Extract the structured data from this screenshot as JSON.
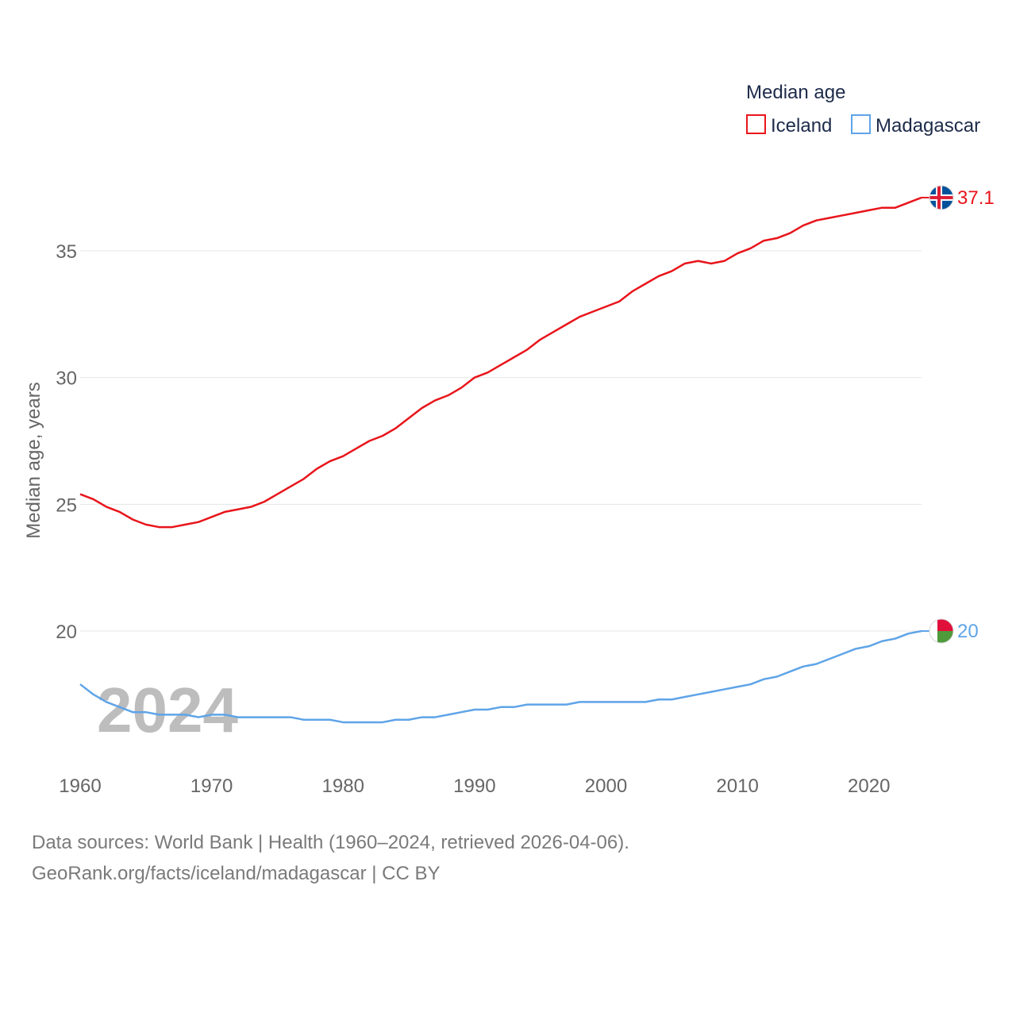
{
  "chart_data": {
    "type": "line",
    "legend_title": "Median age",
    "ylabel": "Median age, years",
    "xlim": [
      1960,
      2024
    ],
    "ylim": [
      15,
      38
    ],
    "y_ticks": [
      20,
      25,
      30,
      35
    ],
    "x_ticks": [
      1960,
      1970,
      1980,
      1990,
      2000,
      2010,
      2020
    ],
    "grid": true,
    "current_year": "2024",
    "x": [
      1960,
      1961,
      1962,
      1963,
      1964,
      1965,
      1966,
      1967,
      1968,
      1969,
      1970,
      1971,
      1972,
      1973,
      1974,
      1975,
      1976,
      1977,
      1978,
      1979,
      1980,
      1981,
      1982,
      1983,
      1984,
      1985,
      1986,
      1987,
      1988,
      1989,
      1990,
      1991,
      1992,
      1993,
      1994,
      1995,
      1996,
      1997,
      1998,
      1999,
      2000,
      2001,
      2002,
      2003,
      2004,
      2005,
      2006,
      2007,
      2008,
      2009,
      2010,
      2011,
      2012,
      2013,
      2014,
      2015,
      2016,
      2017,
      2018,
      2019,
      2020,
      2021,
      2022,
      2023,
      2024
    ],
    "series": [
      {
        "name": "Iceland",
        "color": "#e8151b",
        "end_label": "37.1",
        "flag": "iceland-flag-icon",
        "values": [
          25.4,
          25.2,
          24.9,
          24.7,
          24.4,
          24.2,
          24.1,
          24.1,
          24.2,
          24.3,
          24.5,
          24.7,
          24.8,
          24.9,
          25.1,
          25.4,
          25.7,
          26.0,
          26.4,
          26.7,
          26.9,
          27.2,
          27.5,
          27.7,
          28.0,
          28.4,
          28.8,
          29.1,
          29.3,
          29.6,
          30.0,
          30.2,
          30.5,
          30.8,
          31.1,
          31.5,
          31.8,
          32.1,
          32.4,
          32.6,
          32.8,
          33.0,
          33.4,
          33.7,
          34.0,
          34.2,
          34.5,
          34.6,
          34.5,
          34.6,
          34.9,
          35.1,
          35.4,
          35.5,
          35.7,
          36.0,
          36.2,
          36.3,
          36.4,
          36.5,
          36.6,
          36.7,
          36.7,
          36.9,
          37.1
        ]
      },
      {
        "name": "Madagascar",
        "color": "#5fa4e8",
        "end_label": "20",
        "flag": "madagascar-flag-icon",
        "values": [
          17.9,
          17.5,
          17.2,
          17.0,
          16.8,
          16.8,
          16.7,
          16.7,
          16.7,
          16.6,
          16.7,
          16.7,
          16.6,
          16.6,
          16.6,
          16.6,
          16.6,
          16.5,
          16.5,
          16.5,
          16.4,
          16.4,
          16.4,
          16.4,
          16.5,
          16.5,
          16.6,
          16.6,
          16.7,
          16.8,
          16.9,
          16.9,
          17.0,
          17.0,
          17.1,
          17.1,
          17.1,
          17.1,
          17.2,
          17.2,
          17.2,
          17.2,
          17.2,
          17.2,
          17.3,
          17.3,
          17.4,
          17.5,
          17.6,
          17.7,
          17.8,
          17.9,
          18.1,
          18.2,
          18.4,
          18.6,
          18.7,
          18.9,
          19.1,
          19.3,
          19.4,
          19.6,
          19.7,
          19.9,
          20.0
        ]
      }
    ]
  },
  "footer": {
    "line1": "Data sources: World Bank | Health (1960–2024, retrieved 2026-04-06).",
    "line2": "GeoRank.org/facts/iceland/madagascar | CC BY"
  }
}
